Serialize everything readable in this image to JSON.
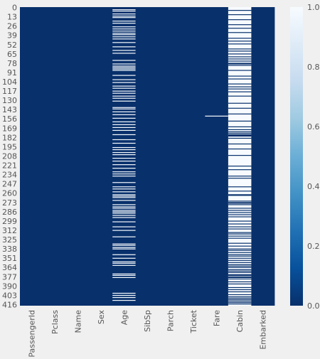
{
  "chart_data": {
    "type": "heatmap",
    "title": "",
    "xlabel": "",
    "ylabel": "",
    "x_categories": [
      "PassengerId",
      "Pclass",
      "Name",
      "Sex",
      "Age",
      "SibSp",
      "Parch",
      "Ticket",
      "Fare",
      "Cabin",
      "Embarked"
    ],
    "y_tick_labels": [
      "0",
      "13",
      "26",
      "39",
      "52",
      "65",
      "78",
      "91",
      "104",
      "117",
      "130",
      "143",
      "156",
      "169",
      "182",
      "195",
      "208",
      "221",
      "234",
      "247",
      "260",
      "273",
      "286",
      "299",
      "312",
      "325",
      "338",
      "351",
      "364",
      "377",
      "390",
      "403",
      "416"
    ],
    "n_rows": 418,
    "missing_rows": {
      "Age": [
        3,
        5,
        9,
        12,
        14,
        19,
        22,
        27,
        30,
        33,
        36,
        38,
        41,
        44,
        49,
        55,
        60,
        64,
        74,
        79,
        82,
        84,
        86,
        88,
        95,
        101,
        105,
        110,
        113,
        117,
        120,
        124,
        127,
        131,
        140,
        142,
        146,
        150,
        155,
        160,
        164,
        168,
        172,
        178,
        185,
        190,
        196,
        199,
        203,
        206,
        211,
        215,
        220,
        225,
        230,
        233,
        236,
        245,
        251,
        254,
        258,
        262,
        264,
        266,
        270,
        276,
        279,
        281,
        284,
        286,
        288,
        291,
        294,
        300,
        307,
        312,
        321,
        331,
        333,
        336,
        338,
        346,
        351,
        356,
        358,
        361,
        373,
        375,
        378,
        400,
        403,
        406,
        410
      ],
      "Fare": [
        152
      ],
      "Cabin_present": [
        4,
        10,
        17,
        24,
        29,
        35,
        43,
        47,
        51,
        58,
        61,
        65,
        69,
        72,
        75,
        78,
        79,
        81,
        88,
        96,
        100,
        107,
        111,
        114,
        118,
        124,
        134,
        141,
        149,
        159,
        167,
        171,
        174,
        176,
        178,
        179,
        180,
        183,
        191,
        198,
        207,
        222,
        227,
        236,
        239,
        251,
        257,
        262,
        263,
        271,
        273,
        274,
        276,
        281,
        284,
        287,
        290,
        293,
        299,
        303,
        307,
        310,
        315,
        317,
        320,
        323,
        330,
        334,
        338,
        340,
        343,
        346,
        348,
        351,
        354,
        357,
        360,
        362,
        364,
        367,
        369,
        371,
        374,
        375,
        377,
        378,
        380,
        384,
        387,
        392,
        395,
        398,
        402,
        405,
        407,
        409,
        411,
        413,
        415
      ]
    },
    "colorbar": {
      "range": [
        0,
        1
      ],
      "tick_labels": [
        "0.0",
        "0.2",
        "0.4",
        "0.6",
        "0.8",
        "1.0"
      ],
      "colors": [
        "#08306b",
        "#08519c",
        "#2171b5",
        "#4292c6",
        "#6baed6",
        "#9ecae1",
        "#c6dbef",
        "#deebf7",
        "#f7fbff"
      ]
    },
    "colors": {
      "background": "#f0f0f0",
      "tick_text": "#555555",
      "present": "#08306b",
      "missing": "#f7fbff"
    }
  }
}
